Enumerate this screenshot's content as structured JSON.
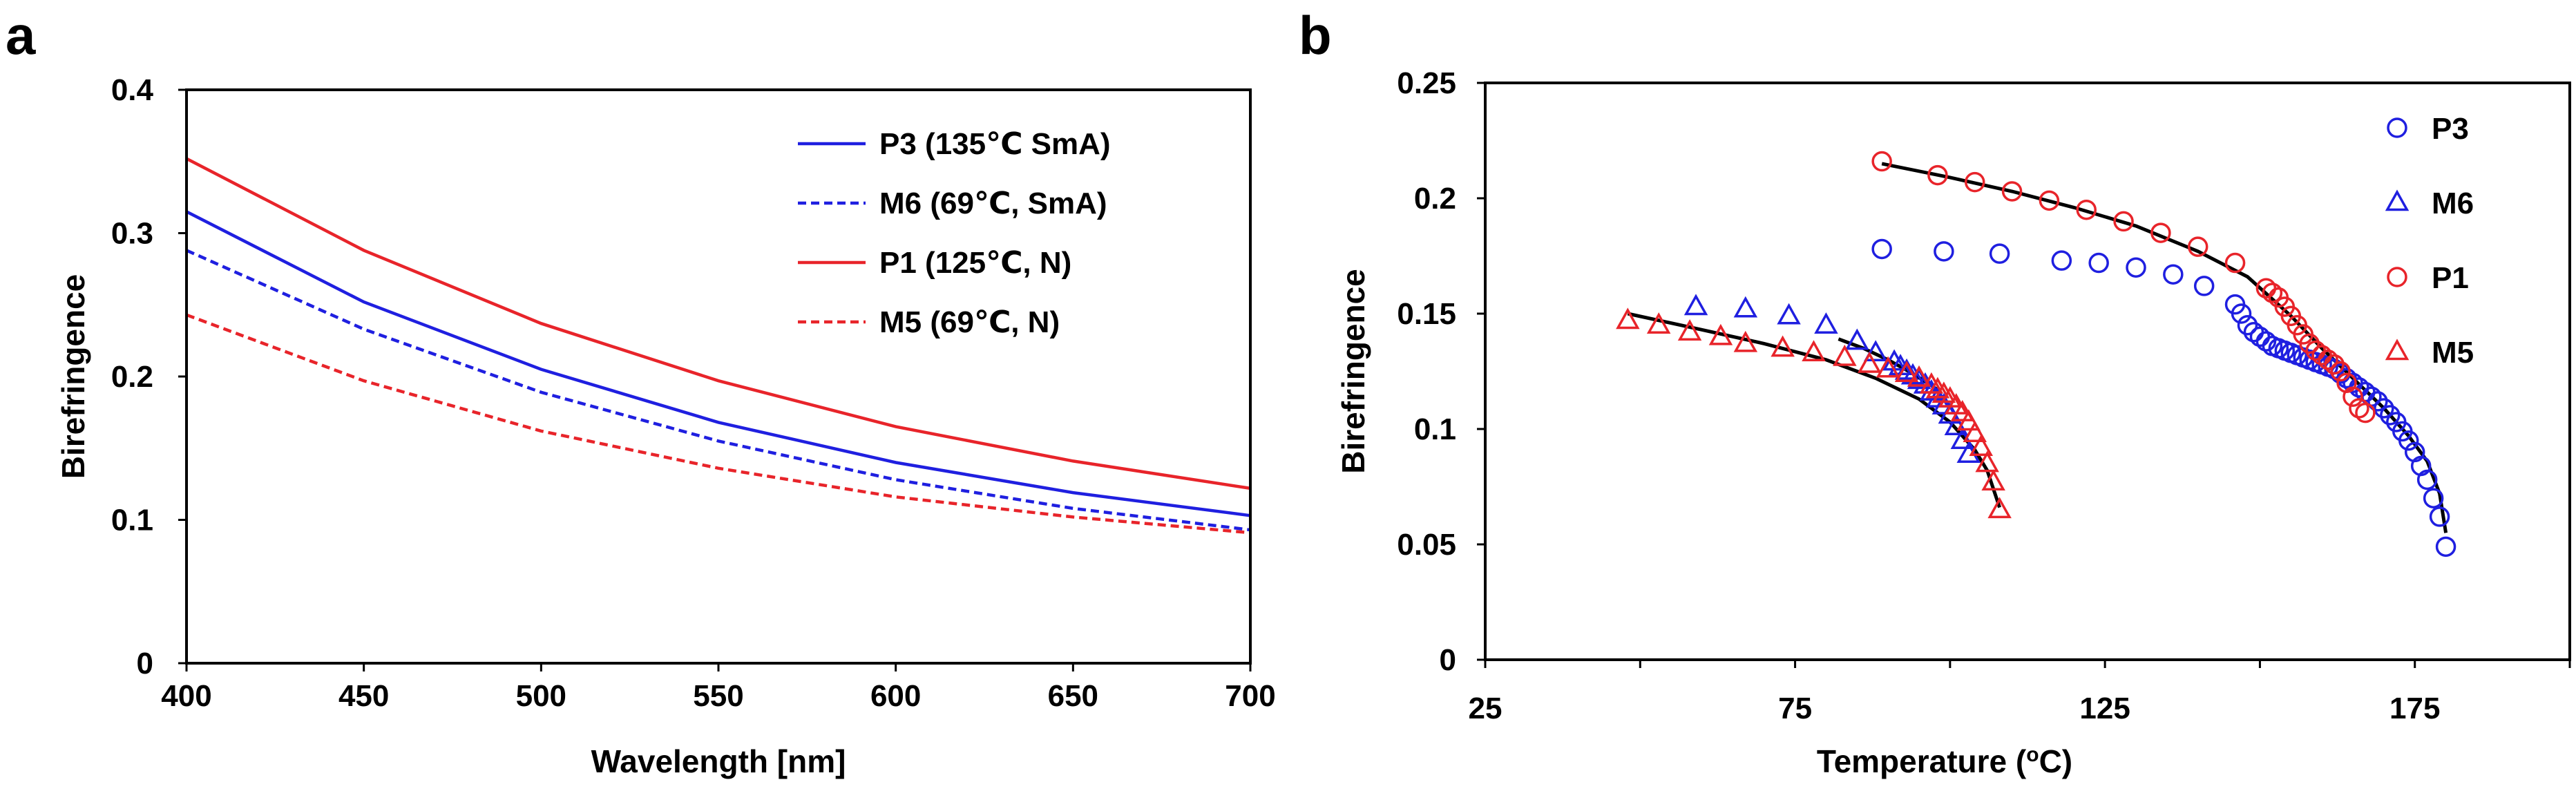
{
  "panels": {
    "a": "a",
    "b": "b"
  },
  "colors": {
    "blue": "#1f1fe0",
    "red": "#e8242a",
    "fit": "#000000",
    "frame": "#000000"
  },
  "chart_data": [
    {
      "type": "line",
      "panel": "a",
      "title": "",
      "xlabel": "Wavelength [nm]",
      "ylabel": "Birefringence",
      "xlim": [
        400,
        700
      ],
      "ylim": [
        0,
        0.4
      ],
      "xticks": [
        400,
        450,
        500,
        550,
        600,
        650,
        700
      ],
      "xtick_labels": [
        "400",
        "450",
        "500",
        "550",
        "600",
        "650",
        "700"
      ],
      "yticks": [
        0,
        0.1,
        0.2,
        0.3,
        0.4
      ],
      "ytick_labels": [
        "0",
        "0.1",
        "0.2",
        "0.3",
        "0.4"
      ],
      "legend_position": "top-right",
      "x": [
        400,
        450,
        500,
        550,
        600,
        650,
        700
      ],
      "series": [
        {
          "name": "P3 (135℃ SmA)",
          "color": "#1f1fe0",
          "dash": "solid",
          "values": [
            0.315,
            0.252,
            0.205,
            0.168,
            0.14,
            0.119,
            0.103
          ]
        },
        {
          "name": "M6 (69℃, SmA)",
          "color": "#1f1fe0",
          "dash": "dashed",
          "values": [
            0.288,
            0.233,
            0.189,
            0.155,
            0.128,
            0.108,
            0.093
          ]
        },
        {
          "name": "P1 (125℃, N)",
          "color": "#e8242a",
          "dash": "solid",
          "values": [
            0.352,
            0.288,
            0.237,
            0.197,
            0.165,
            0.141,
            0.122
          ]
        },
        {
          "name": "M5 (69℃, N)",
          "color": "#e8242a",
          "dash": "dashed",
          "values": [
            0.243,
            0.197,
            0.162,
            0.136,
            0.116,
            0.102,
            0.091
          ]
        }
      ]
    },
    {
      "type": "scatter",
      "panel": "b",
      "title": "",
      "xlabel": "Temperature (",
      "xlabel_sup": "o",
      "xlabel_end": "C)",
      "ylabel": "Birefringence",
      "xlim": [
        25,
        200
      ],
      "ylim": [
        0,
        0.25
      ],
      "xticks": [
        25,
        75,
        125,
        175
      ],
      "xtick_labels": [
        "25",
        "75",
        "125",
        "175"
      ],
      "xminor": [
        50,
        100,
        150,
        200
      ],
      "yticks": [
        0,
        0.05,
        0.1,
        0.15,
        0.2,
        0.25
      ],
      "ytick_labels": [
        "0",
        "0.05",
        "0.1",
        "0.15",
        "0.2",
        "0.25"
      ],
      "legend_position": "top-right",
      "series": [
        {
          "name": "P3",
          "marker": "circle",
          "color": "#1f1fe0",
          "x": [
            89,
            99,
            108,
            118,
            124,
            130,
            136,
            141,
            146,
            147,
            148,
            149,
            150,
            151,
            152,
            153,
            154,
            155,
            156,
            157,
            158,
            159,
            160,
            161,
            162,
            163,
            164,
            165,
            166,
            167,
            168,
            169,
            170,
            171,
            172,
            173,
            174,
            175,
            176,
            177,
            178,
            179,
            180
          ],
          "y": [
            0.178,
            0.177,
            0.176,
            0.173,
            0.172,
            0.17,
            0.167,
            0.162,
            0.154,
            0.15,
            0.145,
            0.142,
            0.14,
            0.138,
            0.136,
            0.135,
            0.134,
            0.133,
            0.132,
            0.131,
            0.13,
            0.129,
            0.128,
            0.127,
            0.126,
            0.124,
            0.122,
            0.12,
            0.118,
            0.116,
            0.114,
            0.112,
            0.109,
            0.106,
            0.103,
            0.099,
            0.095,
            0.09,
            0.084,
            0.078,
            0.07,
            0.062,
            0.049
          ]
        },
        {
          "name": "M6",
          "marker": "triangle",
          "color": "#1f1fe0",
          "x": [
            59,
            67,
            74,
            80,
            85,
            88,
            91,
            92,
            93,
            94,
            95,
            96,
            97,
            98,
            99,
            100,
            101,
            102,
            103
          ],
          "y": [
            0.153,
            0.152,
            0.149,
            0.145,
            0.138,
            0.133,
            0.129,
            0.127,
            0.125,
            0.123,
            0.121,
            0.119,
            0.116,
            0.113,
            0.11,
            0.106,
            0.101,
            0.095,
            0.089
          ]
        },
        {
          "name": "P1",
          "marker": "circle",
          "color": "#e8242a",
          "x": [
            89,
            98,
            104,
            110,
            116,
            122,
            128,
            134,
            140,
            146,
            151,
            152,
            153,
            154,
            155,
            156,
            157,
            158,
            159,
            160,
            161,
            162,
            163,
            164,
            165,
            166,
            167
          ],
          "y": [
            0.216,
            0.21,
            0.207,
            0.203,
            0.199,
            0.195,
            0.19,
            0.185,
            0.179,
            0.172,
            0.161,
            0.159,
            0.157,
            0.153,
            0.149,
            0.145,
            0.141,
            0.137,
            0.134,
            0.132,
            0.13,
            0.128,
            0.125,
            0.12,
            0.114,
            0.109,
            0.107
          ]
        },
        {
          "name": "M5",
          "marker": "triangle",
          "color": "#e8242a",
          "x": [
            48,
            53,
            58,
            63,
            67,
            73,
            78,
            83,
            87,
            90,
            93,
            95,
            97,
            98,
            99,
            100,
            101,
            102,
            103,
            104,
            105,
            106,
            107,
            108
          ],
          "y": [
            0.147,
            0.145,
            0.142,
            0.14,
            0.137,
            0.135,
            0.133,
            0.131,
            0.128,
            0.126,
            0.124,
            0.122,
            0.119,
            0.117,
            0.115,
            0.113,
            0.11,
            0.107,
            0.103,
            0.098,
            0.092,
            0.085,
            0.077,
            0.065
          ]
        }
      ],
      "fits": [
        {
          "name": "fit-left",
          "x": [
            48,
            60,
            70,
            80,
            88,
            95,
            100,
            104,
            106,
            108
          ],
          "y": [
            0.15,
            0.143,
            0.137,
            0.13,
            0.122,
            0.113,
            0.103,
            0.091,
            0.082,
            0.066
          ]
        },
        {
          "name": "fit-left-upper",
          "x": [
            82,
            86,
            90,
            94,
            98
          ],
          "y": [
            0.139,
            0.135,
            0.13,
            0.124,
            0.117
          ]
        },
        {
          "name": "fit-right",
          "x": [
            89,
            100,
            110,
            120,
            130,
            140,
            148,
            155,
            160,
            165,
            170,
            174,
            177,
            179,
            180
          ],
          "y": [
            0.215,
            0.209,
            0.203,
            0.196,
            0.188,
            0.177,
            0.166,
            0.149,
            0.135,
            0.122,
            0.109,
            0.097,
            0.086,
            0.072,
            0.055
          ]
        }
      ]
    }
  ]
}
